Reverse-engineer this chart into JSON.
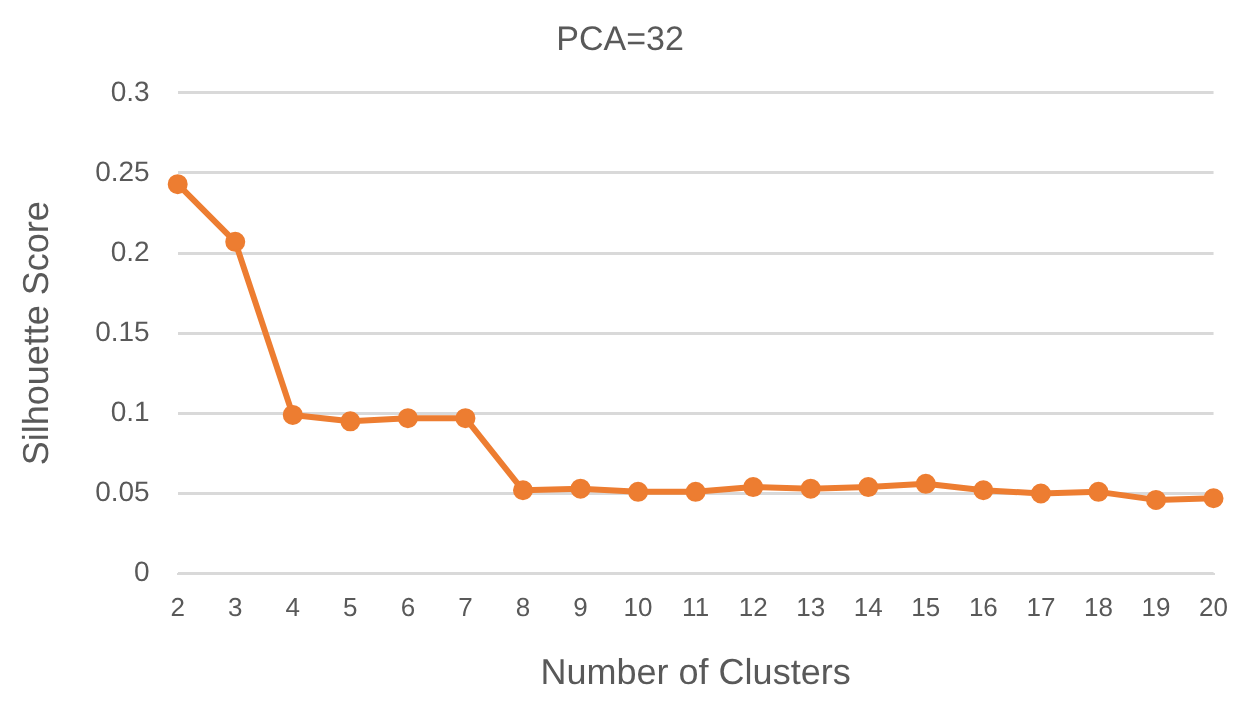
{
  "chart_data": {
    "type": "line",
    "title": "PCA=32",
    "xlabel": "Number of Clusters",
    "ylabel": "Silhouette Score",
    "categories": [
      "2",
      "3",
      "4",
      "5",
      "6",
      "7",
      "8",
      "9",
      "10",
      "11",
      "12",
      "13",
      "14",
      "15",
      "16",
      "17",
      "18",
      "19",
      "20"
    ],
    "series": [
      {
        "color": "#ed7d31",
        "values": [
          0.243,
          0.207,
          0.099,
          0.095,
          0.097,
          0.097,
          0.052,
          0.053,
          0.051,
          0.051,
          0.054,
          0.053,
          0.054,
          0.056,
          0.052,
          0.05,
          0.051,
          0.046,
          0.047
        ]
      }
    ],
    "ylim": [
      0,
      0.3
    ],
    "yticks": [
      0,
      0.05,
      0.1,
      0.15,
      0.2,
      0.25,
      0.3
    ],
    "grid": "y",
    "legend": false,
    "marker": "circle",
    "line_style": "solid"
  }
}
